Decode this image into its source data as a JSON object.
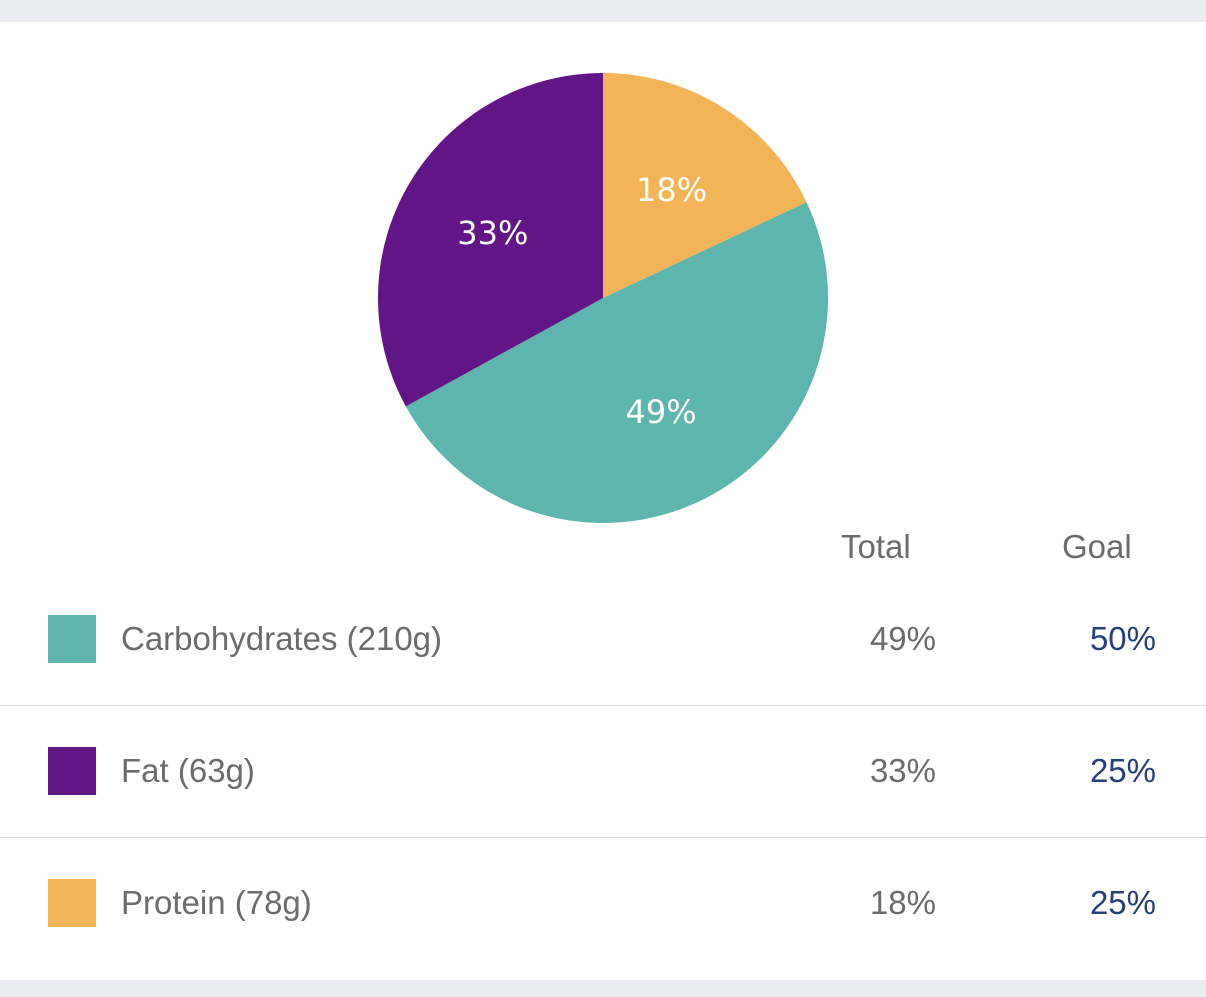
{
  "colors": {
    "carbohydrates": "#5db5ae",
    "fat": "#621586",
    "protein": "#f2b457",
    "goal_text": "#27407a",
    "muted_text": "#6b6b6b"
  },
  "chart_data": {
    "type": "pie",
    "slices": [
      {
        "key": "protein",
        "label": "18%",
        "value": 18,
        "color": "#f2b457"
      },
      {
        "key": "carbohydrates",
        "label": "49%",
        "value": 49,
        "color": "#5db5ae"
      },
      {
        "key": "fat",
        "label": "33%",
        "value": 33,
        "color": "#621586"
      }
    ]
  },
  "table": {
    "headers": {
      "total": "Total",
      "goal": "Goal"
    },
    "rows": [
      {
        "key": "carbohydrates",
        "label": "Carbohydrates (210g)",
        "total": "49%",
        "goal": "50%",
        "color": "#5db5ae"
      },
      {
        "key": "fat",
        "label": "Fat (63g)",
        "total": "33%",
        "goal": "25%",
        "color": "#621586"
      },
      {
        "key": "protein",
        "label": "Protein (78g)",
        "total": "18%",
        "goal": "25%",
        "color": "#f2b457"
      }
    ]
  }
}
